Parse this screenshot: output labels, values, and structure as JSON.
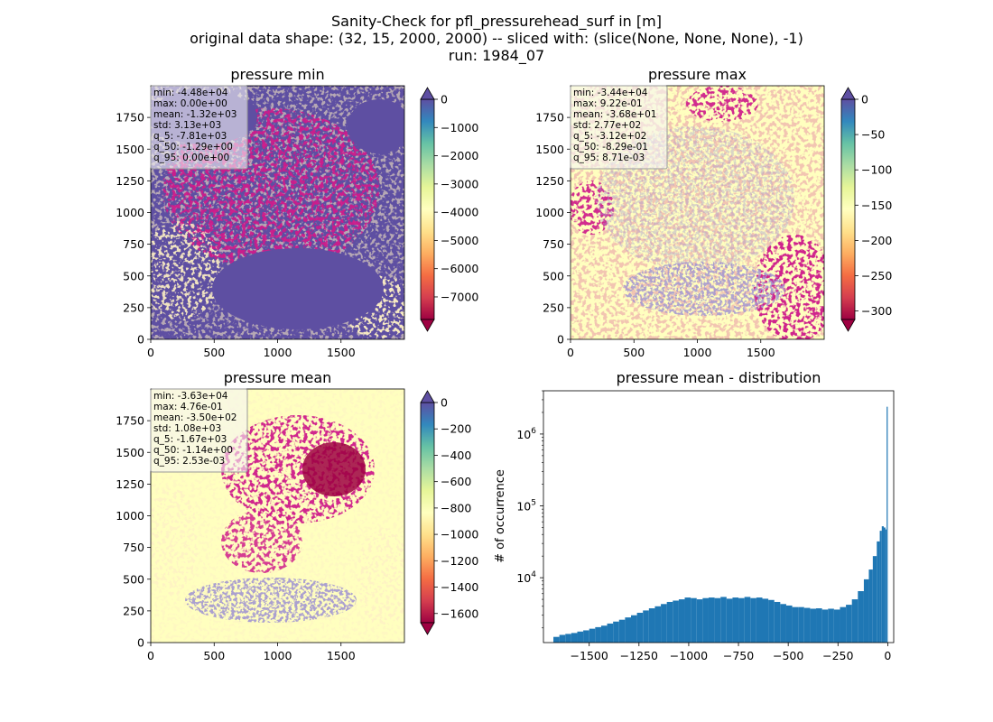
{
  "figure": {
    "title_lines": [
      "Sanity-Check for pfl_pressurehead_surf in [m]",
      "original data shape: (32, 15, 2000, 2000) -- sliced with: (slice(None, None, None), -1)",
      "run: 1984_07"
    ]
  },
  "colors": {
    "spectral": [
      "#9e0142",
      "#d53e4f",
      "#f46d43",
      "#fdae61",
      "#fee08b",
      "#ffffbf",
      "#e6f598",
      "#abdda4",
      "#66c2a5",
      "#3288bd",
      "#5e4fa2"
    ],
    "hist_bar": "#1f77b4",
    "axis": "#000000"
  },
  "chart_data": [
    {
      "type": "heatmap",
      "title": "pressure min",
      "xlim": [
        0,
        2000
      ],
      "ylim": [
        0,
        2000
      ],
      "xticks": [
        0,
        500,
        1000,
        1500
      ],
      "yticks": [
        0,
        250,
        500,
        750,
        1000,
        1250,
        1500,
        1750
      ],
      "colorbar": {
        "vmin": -7800,
        "vmax": 0,
        "ticks": [
          0,
          -1000,
          -2000,
          -3000,
          -4000,
          -5000,
          -6000,
          -7000
        ],
        "extend": "both",
        "cmap": "Spectral"
      },
      "stats": [
        "min: -4.48e+04",
        "max: 0.00e+00",
        "mean: -1.32e+03",
        "std: 3.13e+03",
        "q_5: -7.81e+03",
        "q_50: -1.29e+00",
        "q_95: 0.00e+00"
      ]
    },
    {
      "type": "heatmap",
      "title": "pressure max",
      "xlim": [
        0,
        2000
      ],
      "ylim": [
        0,
        2000
      ],
      "xticks": [
        0,
        500,
        1000,
        1500
      ],
      "yticks": [
        0,
        250,
        500,
        750,
        1000,
        1250,
        1500,
        1750
      ],
      "colorbar": {
        "vmin": -312,
        "vmax": 0,
        "ticks": [
          0,
          -50,
          -100,
          -150,
          -200,
          -250,
          -300
        ],
        "extend": "both",
        "cmap": "Spectral"
      },
      "stats": [
        "min: -3.44e+04",
        "max: 9.22e-01",
        "mean: -3.68e+01",
        "std: 2.77e+02",
        "q_5: -3.12e+02",
        "q_50: -8.29e-01",
        "q_95: 8.71e-03"
      ]
    },
    {
      "type": "heatmap",
      "title": "pressure mean",
      "xlim": [
        0,
        2000
      ],
      "ylim": [
        0,
        2000
      ],
      "xticks": [
        0,
        500,
        1000,
        1500
      ],
      "yticks": [
        0,
        250,
        500,
        750,
        1000,
        1250,
        1500,
        1750
      ],
      "colorbar": {
        "vmin": -1670,
        "vmax": 0,
        "ticks": [
          0,
          -200,
          -400,
          -600,
          -800,
          -1000,
          -1200,
          -1400,
          -1600
        ],
        "extend": "both",
        "cmap": "Spectral"
      },
      "stats": [
        "min: -3.63e+04",
        "max: 4.76e-01",
        "mean: -3.50e+02",
        "std: 1.08e+03",
        "q_5: -1.67e+03",
        "q_50: -1.14e+00",
        "q_95: 2.53e-03"
      ]
    },
    {
      "type": "bar",
      "title": "pressure mean - distribution",
      "ylabel": "# of occurrence",
      "yscale": "log",
      "xlim": [
        -1730,
        30
      ],
      "ylim": [
        1250,
        4000000
      ],
      "xticks": [
        -1500,
        -1250,
        -1000,
        -750,
        -500,
        -250,
        0
      ],
      "yticks": [
        {
          "value": 10000,
          "base": "10",
          "exp": "4"
        },
        {
          "value": 100000,
          "base": "10",
          "exp": "5"
        },
        {
          "value": 1000000,
          "base": "10",
          "exp": "6"
        }
      ],
      "bins": {
        "x": [
          -1665,
          -1635,
          -1605,
          -1575,
          -1545,
          -1515,
          -1485,
          -1455,
          -1425,
          -1395,
          -1365,
          -1335,
          -1305,
          -1275,
          -1245,
          -1215,
          -1185,
          -1155,
          -1125,
          -1095,
          -1065,
          -1035,
          -1005,
          -975,
          -945,
          -915,
          -885,
          -855,
          -825,
          -795,
          -765,
          -735,
          -705,
          -675,
          -645,
          -615,
          -585,
          -555,
          -525,
          -495,
          -465,
          -435,
          -405,
          -375,
          -345,
          -315,
          -285,
          -255,
          -225,
          -195,
          -165,
          -135,
          -105,
          -85,
          -65,
          -45,
          -35,
          -25,
          -15,
          -8,
          -3
        ],
        "values": [
          1500,
          1600,
          1650,
          1700,
          1780,
          1850,
          1950,
          2050,
          2150,
          2300,
          2450,
          2600,
          2800,
          3000,
          3250,
          3500,
          3750,
          4000,
          4300,
          4600,
          4800,
          5000,
          5300,
          5200,
          5000,
          5200,
          5300,
          5200,
          5400,
          5100,
          5300,
          5200,
          5400,
          5200,
          5300,
          5100,
          4900,
          4600,
          4300,
          4100,
          3900,
          3900,
          3800,
          3700,
          3750,
          3600,
          3700,
          3600,
          3900,
          4200,
          5000,
          6500,
          9500,
          13000,
          20000,
          32000,
          45000,
          52000,
          50000,
          47000,
          2400000
        ]
      }
    }
  ]
}
